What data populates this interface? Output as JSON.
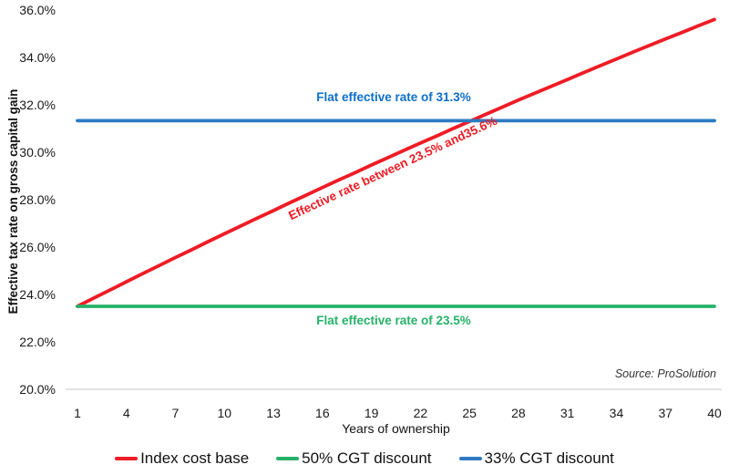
{
  "chart_data": {
    "type": "line",
    "title": "",
    "xlabel": "Years of ownership",
    "ylabel": "Effective tax rate on gross capital gain",
    "xlim": [
      1,
      40
    ],
    "ylim": [
      20,
      36
    ],
    "grid": false,
    "legend_position": "bottom",
    "x_ticks": [
      1,
      4,
      7,
      10,
      13,
      16,
      19,
      22,
      25,
      28,
      31,
      34,
      37,
      40
    ],
    "y_ticks": [
      {
        "label": "36.0%",
        "value": 36
      },
      {
        "label": "34.0%",
        "value": 34
      },
      {
        "label": "32.0%",
        "value": 32
      },
      {
        "label": "30.0%",
        "value": 30
      },
      {
        "label": "28.0%",
        "value": 28
      },
      {
        "label": "26.0%",
        "value": 26
      },
      {
        "label": "24.0%",
        "value": 24
      },
      {
        "label": "22.0%",
        "value": 22
      },
      {
        "label": "20.0%",
        "value": 20
      }
    ],
    "series": [
      {
        "name": "Index cost base",
        "color": "#ee1c25",
        "x": [
          1,
          2,
          3,
          4,
          5,
          6,
          7,
          8,
          9,
          10,
          11,
          12,
          13,
          14,
          15,
          16,
          17,
          18,
          19,
          20,
          21,
          22,
          23,
          24,
          25,
          26,
          27,
          28,
          29,
          30,
          31,
          32,
          33,
          34,
          35,
          36,
          37,
          38,
          39,
          40
        ],
        "values": [
          23.5,
          23.85,
          24.19,
          24.54,
          24.88,
          25.22,
          25.56,
          25.89,
          26.23,
          26.56,
          26.89,
          27.22,
          27.54,
          27.87,
          28.19,
          28.51,
          28.83,
          29.14,
          29.46,
          29.77,
          30.08,
          30.39,
          30.69,
          31.0,
          31.3,
          31.6,
          31.9,
          32.2,
          32.49,
          32.78,
          33.07,
          33.36,
          33.65,
          33.93,
          34.22,
          34.5,
          34.78,
          35.05,
          35.33,
          35.6
        ]
      },
      {
        "name": "50% CGT discount",
        "color": "#25b268",
        "x": [
          1,
          40
        ],
        "values": [
          23.5,
          23.5
        ]
      },
      {
        "name": "33% CGT discount",
        "color": "#2e7ac2",
        "x": [
          1,
          40
        ],
        "values": [
          31.33,
          31.33
        ]
      }
    ],
    "annotations": [
      {
        "id": "blue-flat",
        "text": "Flat effective rate of 31.3%",
        "color": "#0d6ecb",
        "rotation_deg": 0
      },
      {
        "id": "red-range",
        "text": "Effective rate between 23.5% and35.6%",
        "color": "#ee1c25",
        "rotation_deg": -25
      },
      {
        "id": "green-flat",
        "text": "Flat effective rate of 23.5%",
        "color": "#25b268",
        "rotation_deg": 0
      }
    ],
    "legend": [
      {
        "label": "Index cost base",
        "color": "#ee1c25"
      },
      {
        "label": "50% CGT discount",
        "color": "#25b268"
      },
      {
        "label": "33% CGT discount",
        "color": "#2e7ac2"
      }
    ],
    "axis_line_color": "#d9d9d9"
  },
  "source_note": "Source: ProSolution"
}
